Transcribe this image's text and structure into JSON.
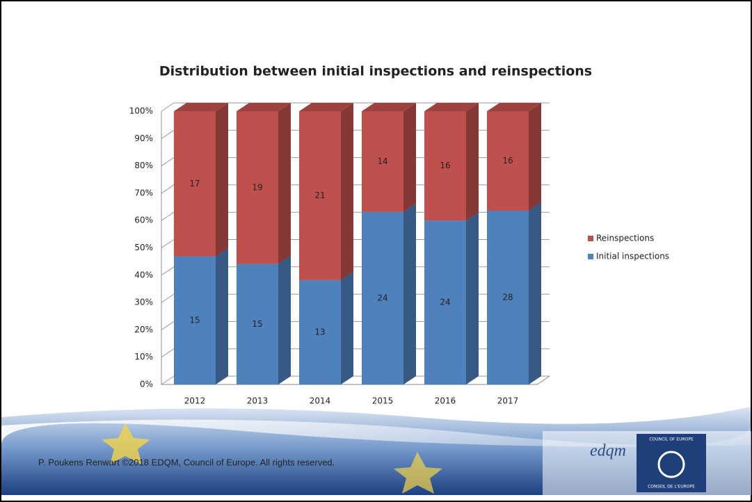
{
  "chart_data": {
    "type": "bar",
    "stacking": "percent",
    "title": "Distribution between  initial inspections and reinspections",
    "categories": [
      "2012",
      "2013",
      "2014",
      "2015",
      "2016",
      "2017"
    ],
    "series": [
      {
        "name": "Initial inspections",
        "color": "#4f81bd",
        "values": [
          15,
          15,
          13,
          24,
          24,
          28
        ]
      },
      {
        "name": "Reinspections",
        "color": "#c0504d",
        "values": [
          17,
          19,
          21,
          14,
          16,
          16
        ]
      }
    ],
    "ylim": [
      0,
      100
    ],
    "yticks": [
      {
        "value": 0,
        "label": "0%"
      },
      {
        "value": 10,
        "label": "10%"
      },
      {
        "value": 20,
        "label": "20%"
      },
      {
        "value": 30,
        "label": "30%"
      },
      {
        "value": 40,
        "label": "40%"
      },
      {
        "value": 50,
        "label": "50%"
      },
      {
        "value": 60,
        "label": "60%"
      },
      {
        "value": 70,
        "label": "70%"
      },
      {
        "value": 80,
        "label": "80%"
      },
      {
        "value": 90,
        "label": "90%"
      },
      {
        "value": 100,
        "label": "100%"
      }
    ],
    "grid": true,
    "legend": "right"
  },
  "footer": {
    "text": "P. Poukens Renwart ©2018 EDQM, Council of Europe. All rights reserved.",
    "logo_edqm": "edqm",
    "logo_coe_top": "COUNCIL OF EUROPE",
    "logo_coe_bottom": "CONSEIL DE L'EUROPE"
  }
}
